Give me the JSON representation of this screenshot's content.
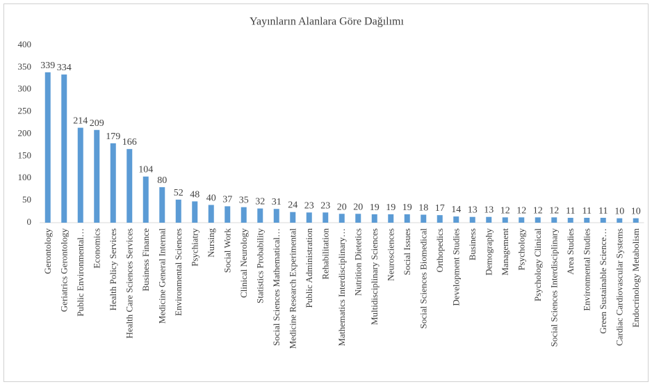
{
  "chart_data": {
    "type": "bar",
    "title": "Yayınların Alanlara Göre Dağılımı",
    "categories": [
      "Gerontology",
      "Geriatrics Gerontology",
      "Public Environmental…",
      "Economics",
      "Health Policy Services",
      "Health Care Sciences Services",
      "Business Finance",
      "Medicine General Internal",
      "Environmental Sciences",
      "Psychiatry",
      "Nursing",
      "Social Work",
      "Clinical Neurology",
      "Statistics Probability",
      "Social Sciences Mathematical…",
      "Medicine Research Experimental",
      "Public Administration",
      "Rehabilitation",
      "Mathematics Interdisciplinary…",
      "Nutrition Dietetics",
      "Multidisciplinary Sciences",
      "Neurosciences",
      "Social Issues",
      "Social Sciences Biomedical",
      "Orthopedics",
      "Development Studies",
      "Business",
      "Demography",
      "Management",
      "Psychology",
      "Psychology Clinical",
      "Social Sciences Interdisciplinary",
      "Area Studies",
      "Environmental Studies",
      "Green Sustainable Science…",
      "Cardiac Cardiovascular Systems",
      "Endocrinology Metabolism"
    ],
    "values": [
      339,
      334,
      214,
      209,
      179,
      166,
      104,
      80,
      52,
      48,
      40,
      37,
      35,
      32,
      31,
      24,
      23,
      23,
      20,
      20,
      19,
      19,
      19,
      18,
      17,
      14,
      13,
      13,
      12,
      12,
      12,
      12,
      11,
      11,
      11,
      10,
      10
    ],
    "color": "#5b9bd5",
    "ylim": [
      0,
      400
    ],
    "yticks": [
      0,
      50,
      100,
      150,
      200,
      250,
      300,
      350,
      400
    ],
    "grid": false
  }
}
